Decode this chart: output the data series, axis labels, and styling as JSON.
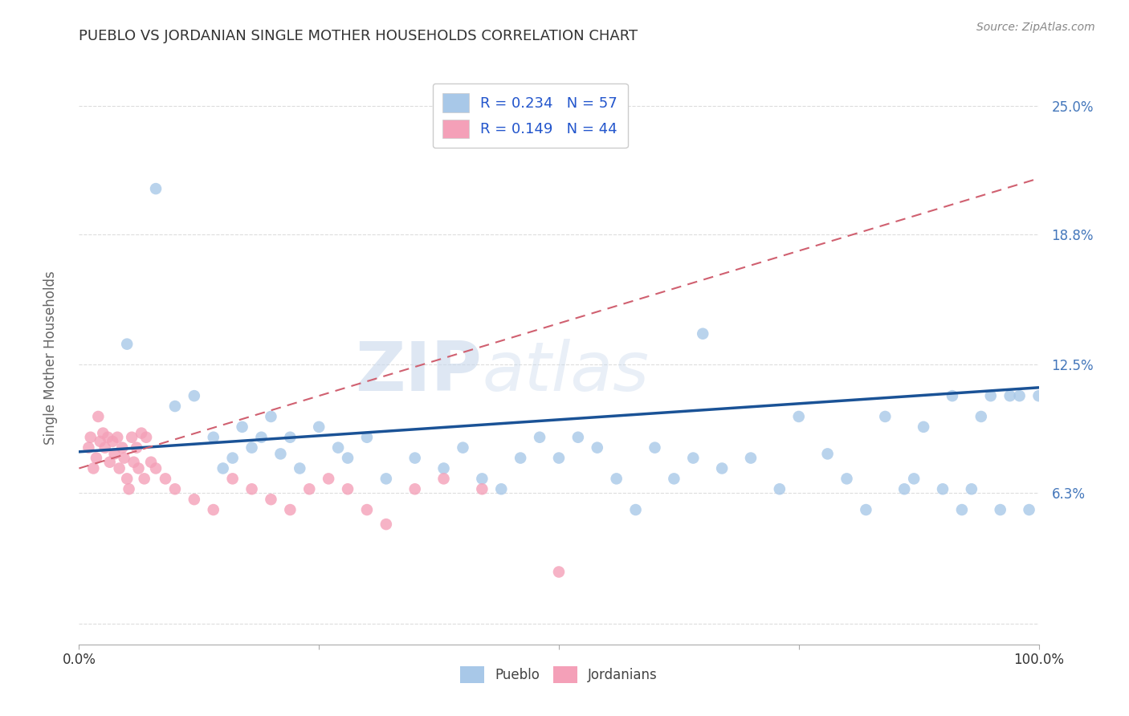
{
  "title": "PUEBLO VS JORDANIAN SINGLE MOTHER HOUSEHOLDS CORRELATION CHART",
  "source": "Source: ZipAtlas.com",
  "ylabel": "Single Mother Households",
  "xlim": [
    0,
    1
  ],
  "ylim": [
    -0.01,
    0.27
  ],
  "ytick_vals": [
    0.0,
    0.063,
    0.125,
    0.188,
    0.25
  ],
  "ytick_labels": [
    "",
    "6.3%",
    "12.5%",
    "18.8%",
    "25.0%"
  ],
  "xtick_vals": [
    0.0,
    0.25,
    0.5,
    0.75,
    1.0
  ],
  "xtick_labels": [
    "0.0%",
    "",
    "",
    "",
    "100.0%"
  ],
  "pueblo_R": 0.234,
  "pueblo_N": 57,
  "jordanian_R": 0.149,
  "jordanian_N": 44,
  "pueblo_color": "#a8c8e8",
  "jordanian_color": "#f4a0b8",
  "trend_blue": "#1a5296",
  "trend_pink": "#d06070",
  "pueblo_x": [
    0.05,
    0.08,
    0.1,
    0.12,
    0.14,
    0.15,
    0.16,
    0.17,
    0.18,
    0.19,
    0.2,
    0.21,
    0.22,
    0.23,
    0.25,
    0.27,
    0.28,
    0.3,
    0.32,
    0.35,
    0.38,
    0.4,
    0.42,
    0.44,
    0.46,
    0.48,
    0.5,
    0.52,
    0.54,
    0.56,
    0.58,
    0.6,
    0.62,
    0.64,
    0.65,
    0.67,
    0.7,
    0.73,
    0.75,
    0.78,
    0.8,
    0.82,
    0.84,
    0.86,
    0.87,
    0.88,
    0.9,
    0.91,
    0.92,
    0.93,
    0.94,
    0.95,
    0.96,
    0.97,
    0.98,
    0.99,
    1.0
  ],
  "pueblo_y": [
    0.135,
    0.21,
    0.105,
    0.11,
    0.09,
    0.075,
    0.08,
    0.095,
    0.085,
    0.09,
    0.1,
    0.082,
    0.09,
    0.075,
    0.095,
    0.085,
    0.08,
    0.09,
    0.07,
    0.08,
    0.075,
    0.085,
    0.07,
    0.065,
    0.08,
    0.09,
    0.08,
    0.09,
    0.085,
    0.07,
    0.055,
    0.085,
    0.07,
    0.08,
    0.14,
    0.075,
    0.08,
    0.065,
    0.1,
    0.082,
    0.07,
    0.055,
    0.1,
    0.065,
    0.07,
    0.095,
    0.065,
    0.11,
    0.055,
    0.065,
    0.1,
    0.11,
    0.055,
    0.11,
    0.11,
    0.055,
    0.11
  ],
  "jordanian_x": [
    0.01,
    0.012,
    0.015,
    0.018,
    0.02,
    0.022,
    0.025,
    0.027,
    0.03,
    0.032,
    0.035,
    0.037,
    0.04,
    0.042,
    0.045,
    0.047,
    0.05,
    0.052,
    0.055,
    0.057,
    0.06,
    0.062,
    0.065,
    0.068,
    0.07,
    0.075,
    0.08,
    0.09,
    0.1,
    0.12,
    0.14,
    0.16,
    0.18,
    0.2,
    0.22,
    0.24,
    0.26,
    0.28,
    0.3,
    0.32,
    0.35,
    0.38,
    0.42,
    0.5
  ],
  "jordanian_y": [
    0.085,
    0.09,
    0.075,
    0.08,
    0.1,
    0.088,
    0.092,
    0.085,
    0.09,
    0.078,
    0.088,
    0.082,
    0.09,
    0.075,
    0.085,
    0.08,
    0.07,
    0.065,
    0.09,
    0.078,
    0.085,
    0.075,
    0.092,
    0.07,
    0.09,
    0.078,
    0.075,
    0.07,
    0.065,
    0.06,
    0.055,
    0.07,
    0.065,
    0.06,
    0.055,
    0.065,
    0.07,
    0.065,
    0.055,
    0.048,
    0.065,
    0.07,
    0.065,
    0.025
  ],
  "watermark_zip": "ZIP",
  "watermark_atlas": "atlas",
  "background_color": "#ffffff",
  "grid_color": "#dddddd"
}
